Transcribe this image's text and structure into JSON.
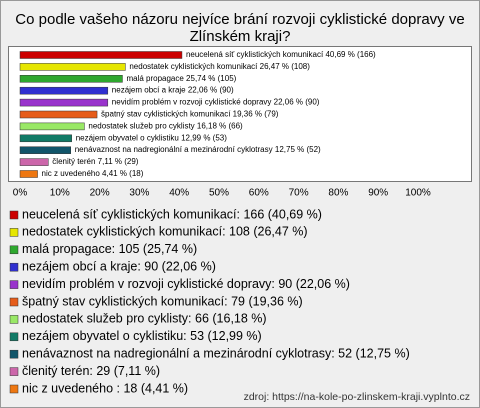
{
  "chart_data": {
    "type": "bar",
    "orientation": "horizontal",
    "title": [
      "Co podle vašeho názoru nejvíce brání rozvoji cyklistické dopravy ve",
      "Zlínském kraji?"
    ],
    "categories": [
      "neucelená síť cyklistických komunikací",
      "nedostatek cyklistických komunikací",
      "malá propagace",
      "nezájem obcí a kraje",
      "nevidím problém v rozvoji cyklistické dopravy",
      "špatný stav cyklistických komunikací",
      "nedostatek služeb pro cyklisty",
      "nezájem obyvatel o cyklistiku",
      "nenávaznost na nadregionální a mezinárodní cyklotrasy",
      "členitý terén",
      "nic z uvedeného"
    ],
    "values": [
      40.69,
      26.47,
      25.74,
      22.06,
      22.06,
      19.36,
      16.18,
      12.99,
      12.75,
      7.11,
      4.41
    ],
    "value_labels": [
      "40,69 % (166)",
      "26,47 % (108)",
      "25,74 % (105)",
      "22,06 % (90)",
      "22,06 % (90)",
      "19,36 % (79)",
      "16,18 % (66)",
      "12,99 % (53)",
      "12,75 % (52)",
      "7,11 % (29)",
      "4,41 % (18)"
    ],
    "colors": [
      "#cc0000",
      "#e6e600",
      "#2ea82e",
      "#3030d0",
      "#9933cc",
      "#e65c1a",
      "#99e866",
      "#117a66",
      "#11556a",
      "#cc66aa",
      "#ee7711"
    ],
    "xlim": [
      0,
      100
    ],
    "xticks": [
      {
        "value": 0,
        "label": "0%"
      },
      {
        "value": 10,
        "label": "10%"
      },
      {
        "value": 20,
        "label": "20%"
      },
      {
        "value": 30,
        "label": "30%"
      },
      {
        "value": 40,
        "label": "40%"
      },
      {
        "value": 50,
        "label": "50%"
      },
      {
        "value": 60,
        "label": "60%"
      },
      {
        "value": 70,
        "label": "70%"
      },
      {
        "value": 80,
        "label": "80%"
      },
      {
        "value": 90,
        "label": "90%"
      },
      {
        "value": 100,
        "label": "100%"
      }
    ],
    "legend_entries": [
      "neucelená síť cyklistických komunikací: 166 (40,69 %)",
      "nedostatek cyklistických komunikací: 108 (26,47 %)",
      "malá propagace: 105 (25,74 %)",
      "nezájem obcí a kraje: 90 (22,06 %)",
      "nevidím problém v rozvoji cyklistické dopravy: 90 (22,06 %)",
      "špatný stav cyklistických komunikací: 79 (19,36 %)",
      "nedostatek služeb pro cyklisty: 66 (16,18 %)",
      "nezájem obyvatel o cyklistiku: 53 (12,99 %)",
      "nenávaznost na nadregionální a mezinárodní cyklotrasy: 52 (12,75 %)",
      "členitý terén: 29 (7,11 %)",
      "nic z uvedeného : 18 (4,41 %)"
    ],
    "source": "zdroj: https://na-kole-po-zlinskem-kraji.vyplnto.cz"
  }
}
